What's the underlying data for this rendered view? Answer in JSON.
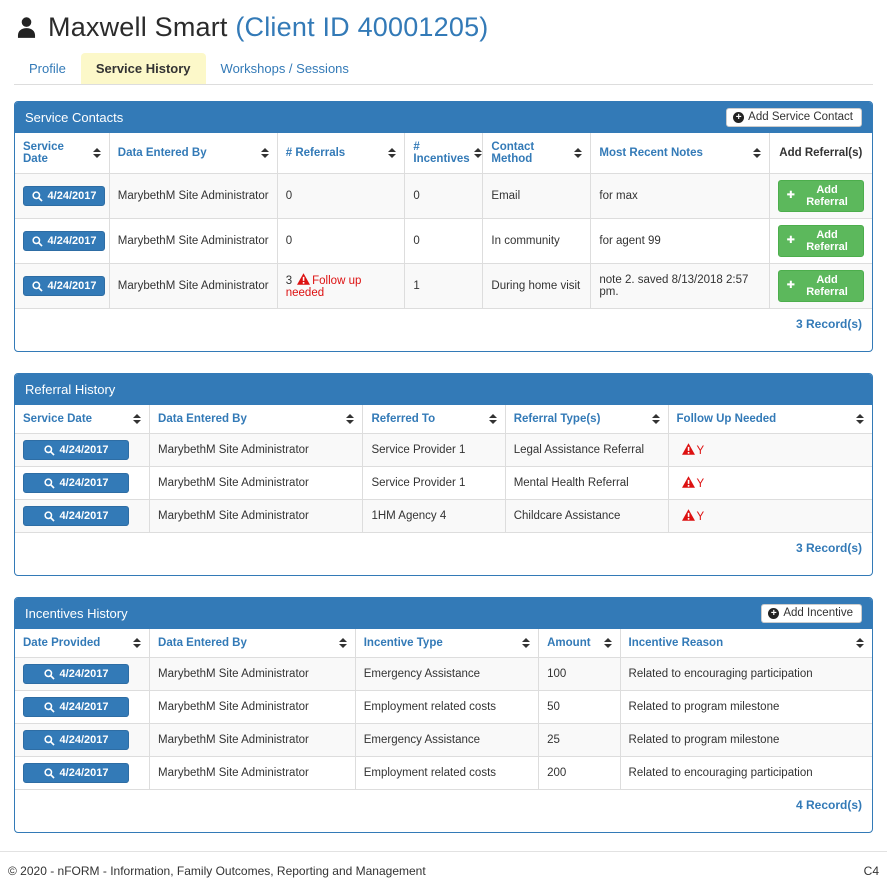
{
  "colors": {
    "accent": "#337ab7",
    "success_green": "#5cb85c",
    "danger_red": "#dd1111",
    "tab_active_bg": "#fcf8c9"
  },
  "header": {
    "client_name": "Maxwell Smart",
    "client_id": "(Client ID 40001205)"
  },
  "tabs": [
    {
      "label": "Profile",
      "active": false
    },
    {
      "label": "Service History",
      "active": true
    },
    {
      "label": "Workshops / Sessions",
      "active": false
    }
  ],
  "panels": {
    "service_contacts": {
      "title": "Service Contacts",
      "add_button": "Add Service Contact",
      "columns": [
        "Service Date",
        "Data Entered By",
        "# Referrals",
        "# Incentives",
        "Contact Method",
        "Most Recent Notes",
        "Add Referral(s)"
      ],
      "row_action": "Add Referral",
      "rows": [
        {
          "service_date": "4/24/2017",
          "entered_by": "MarybethM Site Administrator",
          "referrals": "0",
          "follow_up": false,
          "follow_up_text": "",
          "incentives": "0",
          "contact_method": "Email",
          "notes": "for max"
        },
        {
          "service_date": "4/24/2017",
          "entered_by": "MarybethM Site Administrator",
          "referrals": "0",
          "follow_up": false,
          "follow_up_text": "",
          "incentives": "0",
          "contact_method": "In community",
          "notes": "for agent 99"
        },
        {
          "service_date": "4/24/2017",
          "entered_by": "MarybethM Site Administrator",
          "referrals": "3",
          "follow_up": true,
          "follow_up_text": "Follow up needed",
          "incentives": "1",
          "contact_method": "During home visit",
          "notes": "note 2. saved 8/13/2018 2:57 pm."
        }
      ],
      "record_count": "3 Record(s)"
    },
    "referral_history": {
      "title": "Referral History",
      "columns": [
        "Service Date",
        "Data Entered By",
        "Referred To",
        "Referral Type(s)",
        "Follow Up Needed"
      ],
      "rows": [
        {
          "service_date": "4/24/2017",
          "entered_by": "MarybethM Site Administrator",
          "referred_to": "Service Provider 1",
          "referral_type": "Legal Assistance Referral",
          "follow_up": "Y"
        },
        {
          "service_date": "4/24/2017",
          "entered_by": "MarybethM Site Administrator",
          "referred_to": "Service Provider 1",
          "referral_type": "Mental Health Referral",
          "follow_up": "Y"
        },
        {
          "service_date": "4/24/2017",
          "entered_by": "MarybethM Site Administrator",
          "referred_to": "1HM Agency 4",
          "referral_type": "Childcare Assistance",
          "follow_up": "Y"
        }
      ],
      "record_count": "3 Record(s)"
    },
    "incentives_history": {
      "title": "Incentives History",
      "add_button": "Add Incentive",
      "columns": [
        "Date Provided",
        "Data Entered By",
        "Incentive Type",
        "Amount",
        "Incentive Reason"
      ],
      "rows": [
        {
          "date_provided": "4/24/2017",
          "entered_by": "MarybethM Site Administrator",
          "incentive_type": "Emergency Assistance",
          "amount": "100",
          "reason": "Related to encouraging participation"
        },
        {
          "date_provided": "4/24/2017",
          "entered_by": "MarybethM Site Administrator",
          "incentive_type": "Employment related costs",
          "amount": "50",
          "reason": "Related to program milestone"
        },
        {
          "date_provided": "4/24/2017",
          "entered_by": "MarybethM Site Administrator",
          "incentive_type": "Emergency Assistance",
          "amount": "25",
          "reason": "Related to program milestone"
        },
        {
          "date_provided": "4/24/2017",
          "entered_by": "MarybethM Site Administrator",
          "incentive_type": "Employment related costs",
          "amount": "200",
          "reason": "Related to encouraging participation"
        }
      ],
      "record_count": "4 Record(s)"
    }
  },
  "footer": {
    "copyright": "© 2020 - nFORM - Information, Family Outcomes, Reporting and Management",
    "page_code": "C4"
  }
}
